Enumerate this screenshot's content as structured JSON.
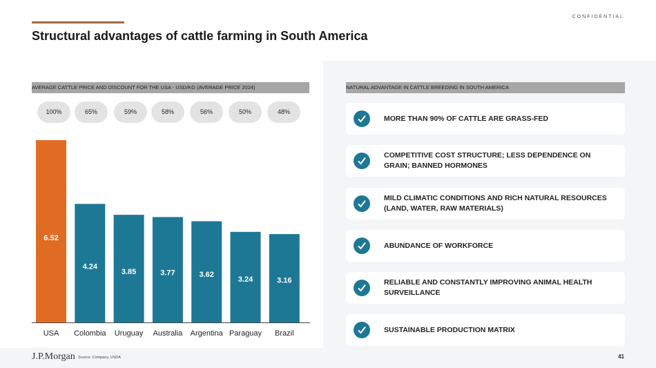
{
  "header": {
    "confidential": "CONFIDENTIAL",
    "title": "Structural advantages of cattle farming in South America"
  },
  "left_section": {
    "heading": "AVERAGE CATTLE PRICE AND DISCOUNT FOR THE USA - USD/KG (AVERAGE PRICE 2024)"
  },
  "right_section": {
    "heading": "NATURAL ADVANTAGE IN CATTLE BREEDING IN SOUTH AMERICA",
    "items": [
      {
        "text": "MORE THAN 90% OF CATTLE ARE GRASS-FED",
        "icon": "check-icon"
      },
      {
        "text": "COMPETITIVE COST STRUCTURE; LESS DEPENDENCE ON GRAIN; BANNED HORMONES",
        "icon": "check-icon"
      },
      {
        "text": "MILD CLIMATIC CONDITIONS AND RICH NATURAL RESOURCES (LAND, WATER, RAW MATERIALS)",
        "icon": "check-icon"
      },
      {
        "text": "ABUNDANCE OF WORKFORCE",
        "icon": "check-icon"
      },
      {
        "text": "RELIABLE AND CONSTANTLY IMPROVING ANIMAL HEALTH SURVEILLANCE",
        "icon": "check-icon"
      },
      {
        "text": "SUSTAINABLE PRODUCTION MATRIX",
        "icon": "check-icon"
      }
    ]
  },
  "chart_data": {
    "type": "bar",
    "title": "AVERAGE CATTLE PRICE AND DISCOUNT FOR THE USA - USD/KG (AVERAGE PRICE 2024)",
    "xlabel": "",
    "ylabel": "USD/KG",
    "categories": [
      "USA",
      "Colombia",
      "Uruguay",
      "Australia",
      "Argentina",
      "Paraguay",
      "Brazil"
    ],
    "values": [
      6.52,
      4.24,
      3.85,
      3.77,
      3.62,
      3.24,
      3.16
    ],
    "value_labels": [
      "6.52",
      "4.24",
      "3.85",
      "3.77",
      "3.62",
      "3.24",
      "3.16"
    ],
    "percent_of_usa": [
      "100%",
      "65%",
      "59%",
      "58%",
      "56%",
      "50%",
      "48%"
    ],
    "ylim": [
      0,
      6.52
    ],
    "colors": {
      "highlight": "#e06c23",
      "default": "#1d7896"
    },
    "highlight_category": "USA",
    "grid": false,
    "legend": "none"
  },
  "footer": {
    "logo": "J.P.Morgan",
    "source": "Source: Company, USDA",
    "page": "41"
  },
  "colors": {
    "accent_rule": "#9b6b43",
    "check_circle": "#1d7896",
    "header_bar": "#a6a6a6",
    "panel_bg": "#f4f5f7"
  }
}
